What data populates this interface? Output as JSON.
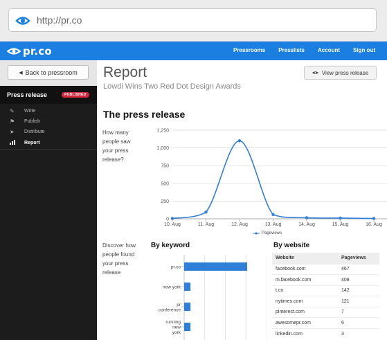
{
  "browser": {
    "url": "http://pr.co"
  },
  "header": {
    "logo": "pr.co",
    "nav": [
      "Pressrooms",
      "Presslists",
      "Account",
      "Sign out"
    ]
  },
  "sidebar": {
    "back_label": "Back to pressroom",
    "title": "Press release",
    "badge": "PUBLISHED",
    "items": [
      {
        "label": "Write",
        "icon": "pencil-icon"
      },
      {
        "label": "Publish",
        "icon": "flag-icon"
      },
      {
        "label": "Distribute",
        "icon": "send-icon"
      },
      {
        "label": "Report",
        "icon": "chart-icon",
        "active": true
      }
    ]
  },
  "main": {
    "title": "Report",
    "subtitle": "Lowdi Wins Two Red Dot Design Awards",
    "view_button": "View press release",
    "section_title": "The press release",
    "question1": "How many people saw your press release?",
    "question2": "Discover how people found your press release",
    "keyword_title": "By keyword",
    "website_title": "By website"
  },
  "colors": {
    "accent": "#1a7fe0",
    "badge": "#d6283c",
    "series": "#2f7ed8"
  },
  "chart_data": [
    {
      "type": "line",
      "x": [
        "10. Aug",
        "11. Aug",
        "12. Aug",
        "13. Aug",
        "14. Aug",
        "15. Aug",
        "16. Aug"
      ],
      "series": [
        {
          "name": "Pageviews",
          "values": [
            5,
            95,
            1100,
            60,
            15,
            10,
            5
          ]
        }
      ],
      "yticks": [
        "0",
        "250",
        "500",
        "750",
        "1,000",
        "1,250"
      ],
      "ylim": [
        0,
        1250
      ],
      "legend": "bottom-center"
    },
    {
      "type": "bar",
      "orientation": "horizontal",
      "categories": [
        "pr.co",
        "new york",
        "pr conference",
        "running new york"
      ],
      "values": [
        100,
        10,
        10,
        10
      ],
      "xlim": [
        0,
        100
      ]
    }
  ],
  "websites": {
    "headers": [
      "Website",
      "Pageviews"
    ],
    "rows": [
      [
        "facebook.com",
        "467"
      ],
      [
        "m.facebook.com",
        "408"
      ],
      [
        "t.co",
        "142"
      ],
      [
        "nytimes.com",
        "121"
      ],
      [
        "pinterest.com",
        "7"
      ],
      [
        "awesomepr.com",
        "6"
      ],
      [
        "linkedin.com",
        "3"
      ]
    ]
  }
}
